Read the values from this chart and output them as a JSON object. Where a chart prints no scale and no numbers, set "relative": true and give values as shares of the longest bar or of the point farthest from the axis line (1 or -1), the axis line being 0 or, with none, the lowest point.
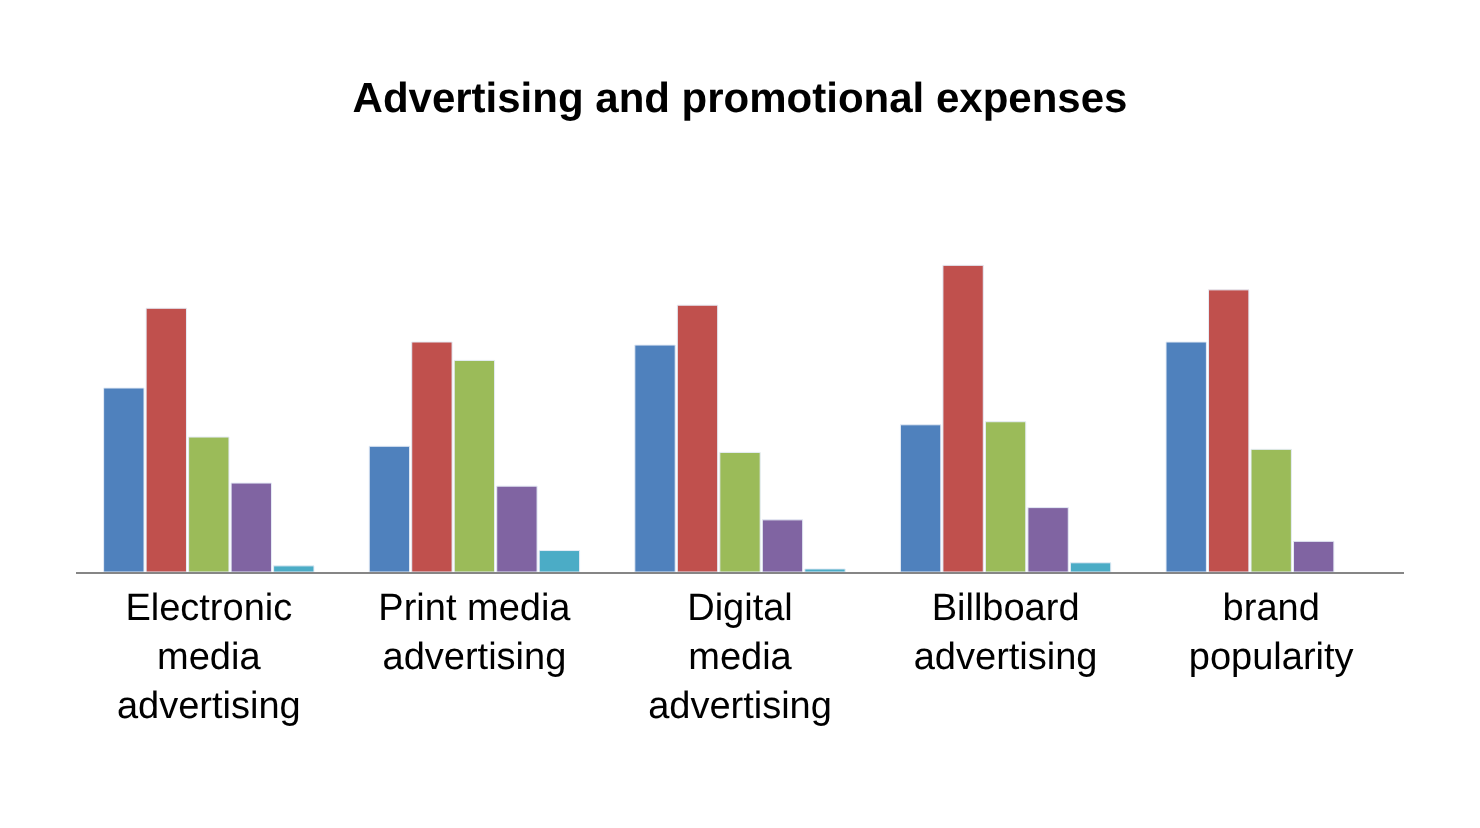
{
  "chart_data": {
    "type": "bar",
    "title": "Advertising and promotional expenses",
    "relative": true,
    "categories": [
      "Electronic media advertising",
      "Print media advertising",
      "Digital media advertising",
      "Billboard advertising",
      "brand popularity"
    ],
    "series": [
      {
        "color": "#4f81bd",
        "values": [
          0.6,
          0.41,
          0.74,
          0.48,
          0.75
        ]
      },
      {
        "color": "#c0504d",
        "values": [
          0.86,
          0.75,
          0.87,
          1,
          0.92
        ]
      },
      {
        "color": "#9bbb59",
        "values": [
          0.44,
          0.69,
          0.39,
          0.49,
          0.4
        ]
      },
      {
        "color": "#8064a2",
        "values": [
          0.29,
          0.28,
          0.17,
          0.21,
          0.1
        ]
      },
      {
        "color": "#4bacc6",
        "values": [
          0.02,
          0.07,
          0.01,
          0.03,
          null
        ]
      }
    ]
  }
}
